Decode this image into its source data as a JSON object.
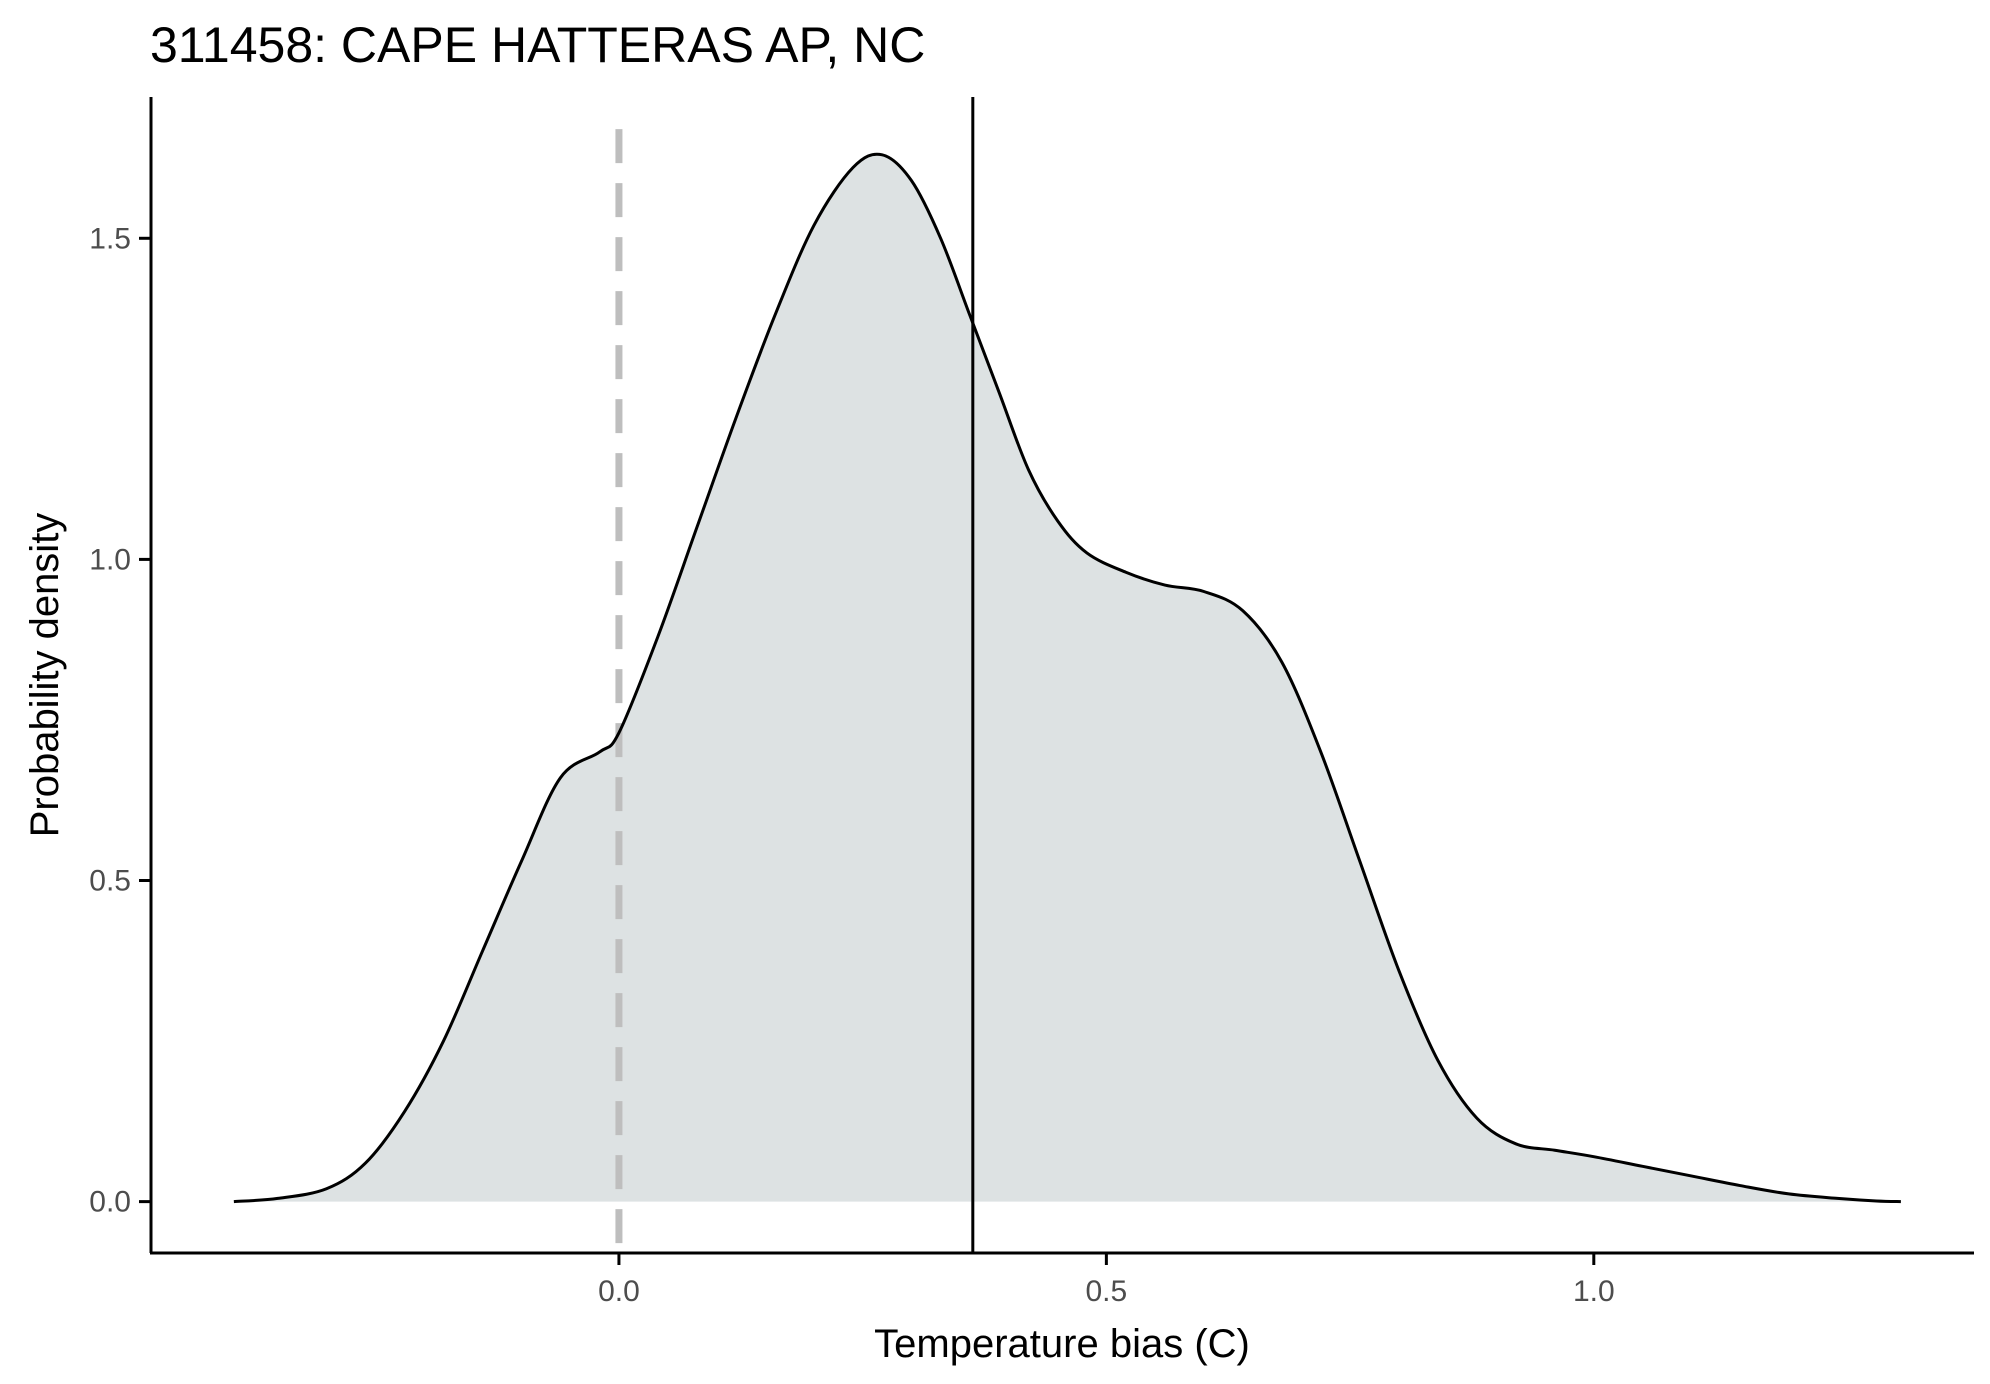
{
  "chart_data": {
    "type": "area",
    "title": "311458: CAPE HATTERAS AP, NC",
    "xlabel": "Temperature bias (C)",
    "ylabel": "Probability density",
    "xlim": [
      -0.48,
      1.39
    ],
    "ylim": [
      -0.08,
      1.72
    ],
    "x_ticks": [
      0.0,
      0.5,
      1.0
    ],
    "x_tick_labels": [
      "0.0",
      "0.5",
      "1.0"
    ],
    "y_ticks": [
      0.0,
      0.5,
      1.0,
      1.5
    ],
    "y_tick_labels": [
      "0.0",
      "0.5",
      "1.0",
      "1.5"
    ],
    "grid": false,
    "legend": "none",
    "fill_color": "#dde2e3",
    "line_color": "#000000",
    "reference_lines": [
      {
        "x": 0.0,
        "style": "dashed",
        "color": "#bebebe"
      },
      {
        "x": 0.363,
        "style": "solid",
        "color": "#000000"
      }
    ],
    "series": [
      {
        "x": [
          -0.395,
          -0.35,
          -0.3,
          -0.26,
          -0.22,
          -0.18,
          -0.14,
          -0.1,
          -0.06,
          -0.02,
          0.0,
          0.04,
          0.08,
          0.12,
          0.16,
          0.2,
          0.24,
          0.27,
          0.3,
          0.33,
          0.36,
          0.39,
          0.42,
          0.45,
          0.48,
          0.52,
          0.56,
          0.6,
          0.64,
          0.68,
          0.72,
          0.76,
          0.8,
          0.84,
          0.88,
          0.92,
          0.96,
          1.0,
          1.05,
          1.1,
          1.15,
          1.2,
          1.25,
          1.29,
          1.315
        ],
        "y": [
          0.0,
          0.005,
          0.02,
          0.06,
          0.14,
          0.25,
          0.39,
          0.53,
          0.66,
          0.7,
          0.73,
          0.88,
          1.05,
          1.22,
          1.38,
          1.52,
          1.61,
          1.63,
          1.59,
          1.5,
          1.38,
          1.26,
          1.14,
          1.06,
          1.01,
          0.98,
          0.96,
          0.95,
          0.92,
          0.84,
          0.7,
          0.53,
          0.36,
          0.22,
          0.13,
          0.09,
          0.08,
          0.07,
          0.055,
          0.04,
          0.025,
          0.012,
          0.005,
          0.001,
          0.0
        ]
      }
    ]
  }
}
